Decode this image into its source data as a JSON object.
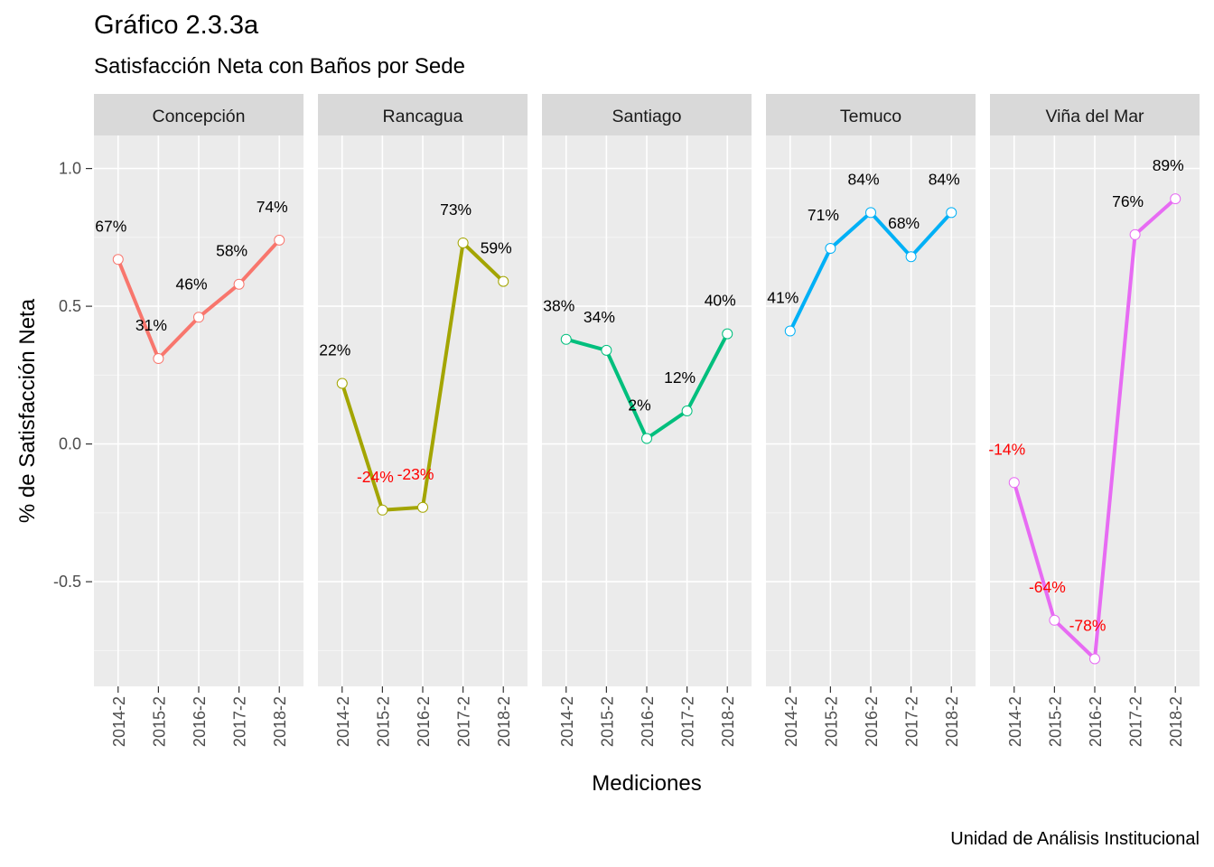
{
  "chart_data": {
    "type": "line",
    "title": "Gráfico 2.3.3a",
    "subtitle": "Satisfacción Neta con Baños por Sede",
    "caption": "Unidad de Análisis Institucional",
    "xlabel": "Mediciones",
    "ylabel": "% de Satisfacción Neta",
    "x": [
      "2014-2",
      "2015-2",
      "2016-2",
      "2017-2",
      "2018-2"
    ],
    "ylim": [
      -0.88,
      1.12
    ],
    "yticks": [
      -0.5,
      0.0,
      0.5,
      1.0
    ],
    "ytick_labels": [
      "-0.5",
      "0.0",
      "0.5",
      "1.0"
    ],
    "grid": true,
    "facets": [
      {
        "name": "Concepción",
        "color": "#F8766D",
        "values": [
          0.67,
          0.31,
          0.46,
          0.58,
          0.74
        ],
        "labels": [
          "67%",
          "31%",
          "46%",
          "58%",
          "74%"
        ]
      },
      {
        "name": "Rancagua",
        "color": "#A3A500",
        "values": [
          0.22,
          -0.24,
          -0.23,
          0.73,
          0.59
        ],
        "labels": [
          "22%",
          "-24%",
          "-23%",
          "73%",
          "59%"
        ]
      },
      {
        "name": "Santiago",
        "color": "#00BF7D",
        "values": [
          0.38,
          0.34,
          0.02,
          0.12,
          0.4
        ],
        "labels": [
          "38%",
          "34%",
          "2%",
          "12%",
          "40%"
        ]
      },
      {
        "name": "Temuco",
        "color": "#00B0F6",
        "values": [
          0.41,
          0.71,
          0.84,
          0.68,
          0.84
        ],
        "labels": [
          "41%",
          "71%",
          "84%",
          "68%",
          "84%"
        ]
      },
      {
        "name": "Viña del Mar",
        "color": "#E76BF3",
        "values": [
          -0.14,
          -0.64,
          -0.78,
          0.76,
          0.89
        ],
        "labels": [
          "-14%",
          "-64%",
          "-78%",
          "76%",
          "89%"
        ]
      }
    ],
    "label_colors": {
      "positive": "#000000",
      "negative": "#FF0000"
    }
  }
}
